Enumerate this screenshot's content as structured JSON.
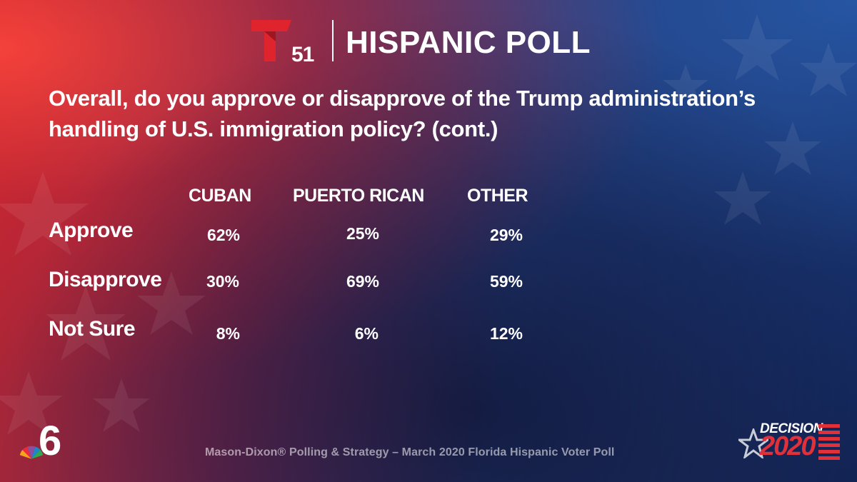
{
  "brand": {
    "station_number": "51",
    "poll_title": "HISPANIC POLL"
  },
  "question": "Overall, do you approve or disapprove of the Trump administration’s handling of U.S. immigration policy? (cont.)",
  "chart_data": {
    "type": "table",
    "title": "Overall, do you approve or disapprove of the Trump administration’s handling of U.S. immigration policy? (cont.)",
    "columns": [
      "CUBAN",
      "PUERTO RICAN",
      "OTHER"
    ],
    "rows": [
      {
        "label": "Approve",
        "values": [
          "62%",
          "25%",
          "29%"
        ]
      },
      {
        "label": "Disapprove",
        "values": [
          "30%",
          "69%",
          "59%"
        ]
      },
      {
        "label": "Not Sure",
        "values": [
          "8%",
          "6%",
          "12%"
        ]
      }
    ]
  },
  "footer": {
    "source": "Mason-Dixon® Polling & Strategy – March 2020 Florida Hispanic Voter Poll",
    "nbc_channel": "6",
    "decision_word": "DECISION",
    "decision_year": "2020"
  },
  "colors": {
    "telemundo_red": "#e0242e",
    "text": "#ffffff",
    "source_text": "#c9c0d0"
  },
  "icons": [
    "telemundo-t-logo",
    "nbc-peacock-6-logo",
    "decision-2020-logo",
    "background-stars"
  ]
}
